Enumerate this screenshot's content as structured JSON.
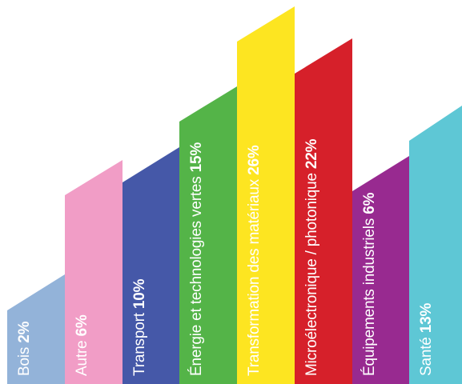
{
  "chart_data": {
    "type": "bar",
    "unit": "%",
    "categories": [
      "Bois",
      "Autre",
      "Transport",
      "Énergie et technologies vertes",
      "Transformation des matériaux",
      "Microélectronique / photonique",
      "Équipements industriels",
      "Santé"
    ],
    "values": [
      2,
      6,
      10,
      15,
      26,
      22,
      6,
      13
    ],
    "labels": [
      "2%",
      "6%",
      "10%",
      "15%",
      "26%",
      "22%",
      "6%",
      "13%"
    ],
    "colors": [
      "#93b3d9",
      "#f19dc6",
      "#4558a8",
      "#54b448",
      "#fde521",
      "#d6202a",
      "#982a90",
      "#5ec7d5"
    ],
    "title": "",
    "xlabel": "",
    "ylabel": "",
    "legend": "none",
    "grid": false,
    "style": "slanted-top bars with in-bar vertical labels; bar heights are not proportional to the percentages"
  }
}
